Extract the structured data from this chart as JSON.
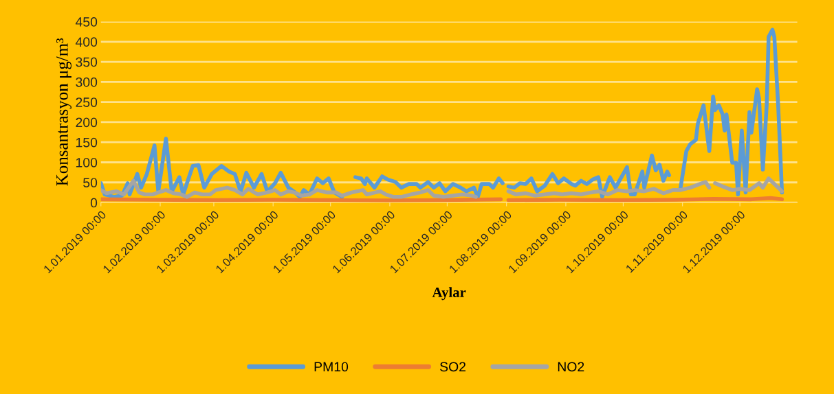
{
  "chart_data": {
    "type": "line",
    "xlabel": "Aylar",
    "ylabel": "Konsantrasyon μg/m³",
    "ylim": [
      0,
      450
    ],
    "yticks": [
      0,
      50,
      100,
      150,
      200,
      250,
      300,
      350,
      400,
      450
    ],
    "xlim": [
      "2019-01-01",
      "2019-12-31"
    ],
    "xticks": [
      {
        "value": "2019-01-01",
        "label": "1.01.2019 00:00"
      },
      {
        "value": "2019-02-01",
        "label": "1.02.2019 00:00"
      },
      {
        "value": "2019-03-01",
        "label": "1.03.2019 00:00"
      },
      {
        "value": "2019-04-01",
        "label": "1.04.2019 00:00"
      },
      {
        "value": "2019-05-01",
        "label": "1.05.2019 00:00"
      },
      {
        "value": "2019-06-01",
        "label": "1.06.2019 00:00"
      },
      {
        "value": "2019-07-01",
        "label": "1.07.2019 00:00"
      },
      {
        "value": "2019-08-01",
        "label": "1.08.2019 00:00"
      },
      {
        "value": "2019-09-01",
        "label": "1.09.2019 00:00"
      },
      {
        "value": "2019-10-01",
        "label": "1.10.2019 00:00"
      },
      {
        "value": "2019-11-01",
        "label": "1.11.2019 00:00"
      },
      {
        "value": "2019-12-01",
        "label": "1.12.2019 00:00"
      }
    ],
    "grid": "y",
    "legend": "bottom",
    "marker": "none",
    "line_style": "solid",
    "series": [
      {
        "name": "PM10",
        "color": "#5b9bd5",
        "x": [
          "2019-01-01",
          "2019-01-03",
          "2019-01-08",
          "2019-01-12",
          "2019-01-15",
          "2019-01-16",
          "2019-01-20",
          "2019-01-22",
          "2019-01-25",
          "2019-01-29",
          "2019-01-31",
          "2019-02-04",
          "2019-02-07",
          "2019-02-11",
          "2019-02-13",
          "2019-02-18",
          "2019-02-21",
          "2019-02-24",
          "2019-02-28",
          "2019-03-05",
          "2019-03-09",
          "2019-03-12",
          "2019-03-15",
          "2019-03-18",
          "2019-03-22",
          "2019-03-26",
          "2019-03-29",
          "2019-04-02",
          "2019-04-05",
          "2019-04-09",
          "2019-04-12",
          "2019-04-15",
          "2019-04-17",
          "2019-04-20",
          "2019-04-24",
          "2019-04-27",
          "2019-04-30",
          "2019-05-03",
          "2019-05-07",
          "2019-05-08",
          "2019-05-14",
          "2019-05-17",
          "2019-05-19",
          "2019-05-20",
          "2019-05-24",
          "2019-05-28",
          "2019-05-31",
          "2019-06-04",
          "2019-06-07",
          "2019-06-11",
          "2019-06-15",
          "2019-06-17",
          "2019-06-21",
          "2019-06-24",
          "2019-06-27",
          "2019-06-30",
          "2019-07-04",
          "2019-07-08",
          "2019-07-11",
          "2019-07-15",
          "2019-07-17",
          "2019-07-19",
          "2019-07-23",
          "2019-07-25",
          "2019-07-28",
          "2019-07-30",
          "2019-07-31",
          "2019-08-02",
          "2019-08-05",
          "2019-08-08",
          "2019-08-11",
          "2019-08-14",
          "2019-08-17",
          "2019-08-21",
          "2019-08-25",
          "2019-08-28",
          "2019-08-31",
          "2019-09-04",
          "2019-09-06",
          "2019-09-09",
          "2019-09-12",
          "2019-09-15",
          "2019-09-18",
          "2019-09-20",
          "2019-09-24",
          "2019-09-27",
          "2019-09-29",
          "2019-10-03",
          "2019-10-05",
          "2019-10-07",
          "2019-10-11",
          "2019-10-12",
          "2019-10-16",
          "2019-10-18",
          "2019-10-20",
          "2019-10-22",
          "2019-10-24",
          "2019-10-25",
          "2019-10-26",
          "2019-10-31",
          "2019-11-03",
          "2019-11-05",
          "2019-11-08",
          "2019-11-09",
          "2019-11-12",
          "2019-11-15",
          "2019-11-17",
          "2019-11-18",
          "2019-11-20",
          "2019-11-22",
          "2019-11-23",
          "2019-11-24",
          "2019-11-27",
          "2019-11-29",
          "2019-11-30",
          "2019-12-02",
          "2019-12-04",
          "2019-12-06",
          "2019-12-07",
          "2019-12-10",
          "2019-12-11",
          "2019-12-13",
          "2019-12-15",
          "2019-12-16",
          "2019-12-18",
          "2019-12-19",
          "2019-12-21",
          "2019-12-23"
        ],
        "values": [
          48,
          20,
          14,
          17,
          48,
          20,
          71,
          37,
          71,
          142,
          27,
          159,
          27,
          63,
          20,
          91,
          93,
          37,
          71,
          91,
          77,
          71,
          27,
          74,
          37,
          71,
          27,
          48,
          74,
          37,
          27,
          14,
          31,
          20,
          60,
          48,
          60,
          25,
          14,
          null,
          63,
          60,
          46,
          60,
          37,
          65,
          57,
          51,
          37,
          46,
          46,
          37,
          51,
          37,
          48,
          28,
          46,
          37,
          28,
          37,
          14,
          46,
          46,
          37,
          60,
          48,
          null,
          40,
          37,
          48,
          46,
          60,
          28,
          42,
          71,
          48,
          60,
          46,
          42,
          54,
          46,
          57,
          63,
          14,
          63,
          37,
          54,
          88,
          20,
          20,
          77,
          37,
          117,
          80,
          94,
          54,
          77,
          68,
          null,
          37,
          128,
          145,
          156,
          196,
          242,
          128,
          264,
          230,
          242,
          219,
          179,
          219,
          99,
          99,
          20,
          179,
          25,
          225,
          174,
          282,
          259,
          82,
          242,
          412,
          430,
          412,
          242,
          25
        ]
      },
      {
        "name": "SO2",
        "color": "#ed7d31",
        "x": [
          "2019-01-01",
          "2019-01-31",
          "2019-03-02",
          "2019-04-01",
          "2019-05-01",
          "2019-05-31",
          "2019-06-30",
          "2019-07-29",
          "2019-07-30",
          "2019-08-02",
          "2019-08-29",
          "2019-09-28",
          "2019-10-28",
          "2019-11-17",
          "2019-12-07",
          "2019-12-17",
          "2019-12-23"
        ],
        "values": [
          8,
          7,
          6,
          7,
          6,
          5,
          6,
          8,
          null,
          6,
          7,
          6,
          7,
          9,
          8,
          11,
          8
        ]
      },
      {
        "name": "NO2",
        "color": "#a5a5a5",
        "x": [
          "2019-01-01",
          "2019-01-04",
          "2019-01-09",
          "2019-01-13",
          "2019-01-18",
          "2019-01-21",
          "2019-01-24",
          "2019-01-28",
          "2019-01-31",
          "2019-02-04",
          "2019-02-08",
          "2019-02-12",
          "2019-02-15",
          "2019-02-19",
          "2019-02-23",
          "2019-02-27",
          "2019-03-02",
          "2019-03-08",
          "2019-03-12",
          "2019-03-16",
          "2019-03-19",
          "2019-03-24",
          "2019-03-29",
          "2019-04-02",
          "2019-04-05",
          "2019-04-09",
          "2019-04-12",
          "2019-04-16",
          "2019-04-20",
          "2019-04-24",
          "2019-04-29",
          "2019-05-04",
          "2019-05-07",
          "2019-05-12",
          "2019-05-18",
          "2019-05-20",
          "2019-05-27",
          "2019-05-30",
          "2019-06-03",
          "2019-06-07",
          "2019-06-12",
          "2019-06-17",
          "2019-06-21",
          "2019-06-24",
          "2019-06-29",
          "2019-07-04",
          "2019-07-09",
          "2019-07-14",
          "2019-07-16",
          "2019-07-17",
          "2019-08-02",
          "2019-08-06",
          "2019-08-11",
          "2019-08-16",
          "2019-08-21",
          "2019-08-26",
          "2019-08-30",
          "2019-09-04",
          "2019-09-09",
          "2019-09-14",
          "2019-09-18",
          "2019-09-23",
          "2019-09-28",
          "2019-10-03",
          "2019-10-07",
          "2019-10-12",
          "2019-10-17",
          "2019-10-22",
          "2019-10-27",
          "2019-10-31",
          "2019-11-05",
          "2019-11-10",
          "2019-11-13",
          "2019-11-15",
          "2019-11-16",
          "2019-11-18",
          "2019-11-22",
          "2019-11-27",
          "2019-12-01",
          "2019-12-06",
          "2019-12-11",
          "2019-12-13",
          "2019-12-16",
          "2019-12-19",
          "2019-12-23"
        ],
        "values": [
          31,
          23,
          28,
          20,
          54,
          25,
          20,
          20,
          25,
          31,
          23,
          20,
          14,
          25,
          20,
          20,
          31,
          37,
          31,
          20,
          34,
          20,
          25,
          31,
          20,
          28,
          25,
          17,
          20,
          31,
          25,
          25,
          17,
          25,
          31,
          20,
          28,
          20,
          14,
          14,
          20,
          25,
          31,
          17,
          14,
          17,
          20,
          17,
          14,
          null,
          28,
          20,
          23,
          17,
          20,
          23,
          20,
          23,
          20,
          25,
          28,
          20,
          31,
          28,
          31,
          28,
          34,
          23,
          31,
          31,
          37,
          46,
          51,
          37,
          null,
          48,
          40,
          31,
          34,
          31,
          48,
          37,
          60,
          46,
          28
        ]
      }
    ]
  }
}
